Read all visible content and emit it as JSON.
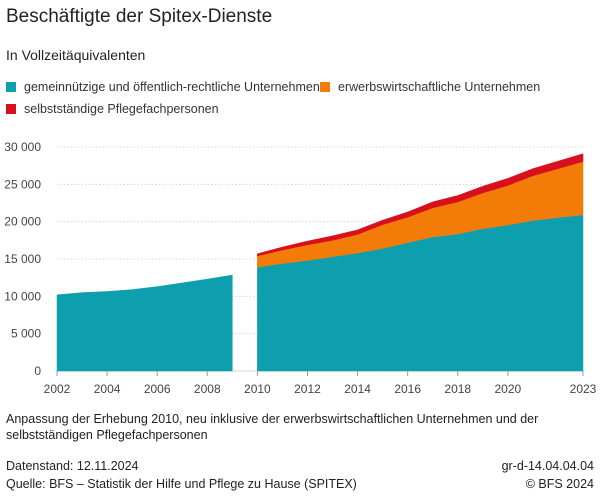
{
  "header": {
    "title": "Beschäftigte der Spitex-Dienste",
    "subtitle": "In Vollzeitäquivalenten"
  },
  "legend": [
    {
      "label": "gemeinnützige und öffentlich-rechtliche Unternehmen",
      "color": "#0e9fae"
    },
    {
      "label": "erwerbswirtschaftliche Unternehmen",
      "color": "#f37b08"
    },
    {
      "label": "selbstständige Pflegefachpersonen",
      "color": "#d8101e"
    }
  ],
  "chart_data": {
    "type": "area",
    "stacked": true,
    "ylim": [
      0,
      30000
    ],
    "xlim": [
      2002,
      2023
    ],
    "yticks": [
      0,
      5000,
      10000,
      15000,
      20000,
      25000,
      30000
    ],
    "ytick_labels": [
      "0",
      "5 000",
      "10 000",
      "15 000",
      "20 000",
      "25 000",
      "30 000"
    ],
    "xticks": [
      2002,
      2004,
      2006,
      2008,
      2010,
      2012,
      2014,
      2016,
      2018,
      2020,
      2023
    ],
    "grid": true,
    "segments": [
      {
        "x": [
          2002,
          2003,
          2004,
          2005,
          2006,
          2007,
          2008,
          2009
        ],
        "series": [
          {
            "values": [
              10200,
              10500,
              10650,
              10900,
              11300,
              11800,
              12300,
              12850
            ]
          }
        ]
      },
      {
        "x": [
          2010,
          2011,
          2012,
          2013,
          2014,
          2015,
          2016,
          2017,
          2018,
          2019,
          2020,
          2021,
          2022,
          2023
        ],
        "series": [
          {
            "values": [
              13900,
              14400,
              14800,
              15300,
              15800,
              16400,
              17200,
              17950,
              18350,
              19050,
              19550,
              20150,
              20550,
              20900
            ]
          },
          {
            "values": [
              1500,
              1800,
              2100,
              2200,
              2500,
              3200,
              3400,
              3900,
              4300,
              4800,
              5300,
              6000,
              6550,
              7150
            ]
          },
          {
            "values": [
              300,
              400,
              500,
              600,
              600,
              600,
              700,
              800,
              850,
              900,
              950,
              950,
              1000,
              1050
            ]
          }
        ]
      }
    ]
  },
  "footer": {
    "note": "Anpassung der Erhebung 2010, neu inklusive der erwerbswirtschaftlichen Unternehmen und der selbstständigen Pflegefachpersonen",
    "datenstand": "Datenstand: 12.11.2024",
    "quelle": "Quelle: BFS – Statistik der Hilfe und Pflege zu Hause (SPITEX)",
    "code": "gr-d-14.04.04.04",
    "copyright": "© BFS 2024"
  }
}
